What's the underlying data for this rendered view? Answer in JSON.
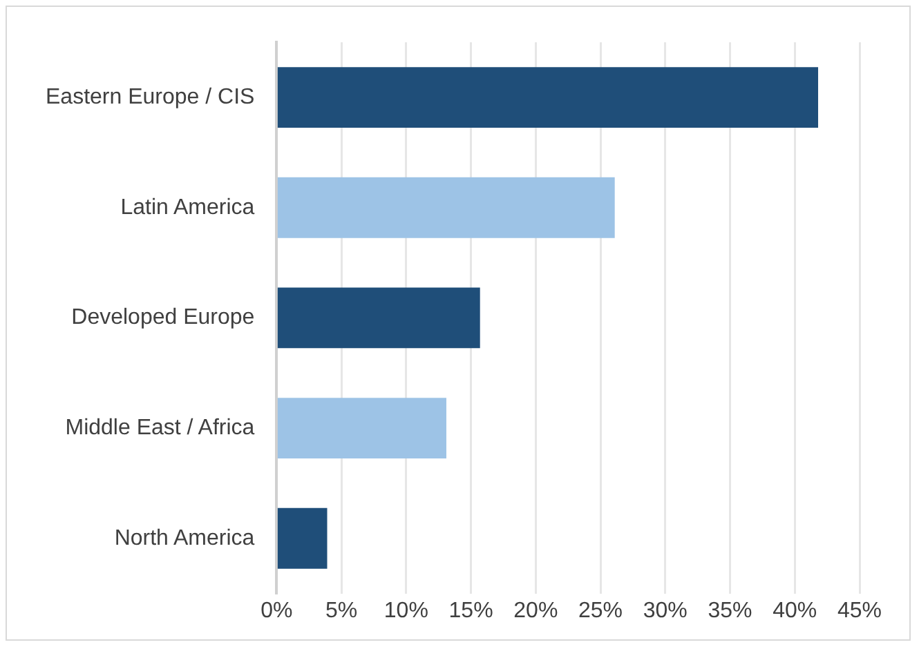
{
  "chart_data": {
    "type": "bar",
    "orientation": "horizontal",
    "categories": [
      "Eastern Europe / CIS",
      "Latin America",
      "Developed Europe",
      "Middle East / Africa",
      "North America"
    ],
    "values": [
      41.8,
      26.1,
      15.7,
      13.1,
      3.9
    ],
    "colors": [
      "#1f4e79",
      "#9dc3e6",
      "#1f4e79",
      "#9dc3e6",
      "#1f4e79"
    ],
    "xlim": [
      0,
      45
    ],
    "xticks": [
      {
        "value": 0,
        "label": "0%"
      },
      {
        "value": 5,
        "label": "5%"
      },
      {
        "value": 10,
        "label": "10%"
      },
      {
        "value": 15,
        "label": "15%"
      },
      {
        "value": 20,
        "label": "20%"
      },
      {
        "value": 25,
        "label": "25%"
      },
      {
        "value": 30,
        "label": "30%"
      },
      {
        "value": 35,
        "label": "35%"
      },
      {
        "value": 40,
        "label": "40%"
      },
      {
        "value": 45,
        "label": "45%"
      }
    ],
    "grid": "x",
    "legend": false
  }
}
